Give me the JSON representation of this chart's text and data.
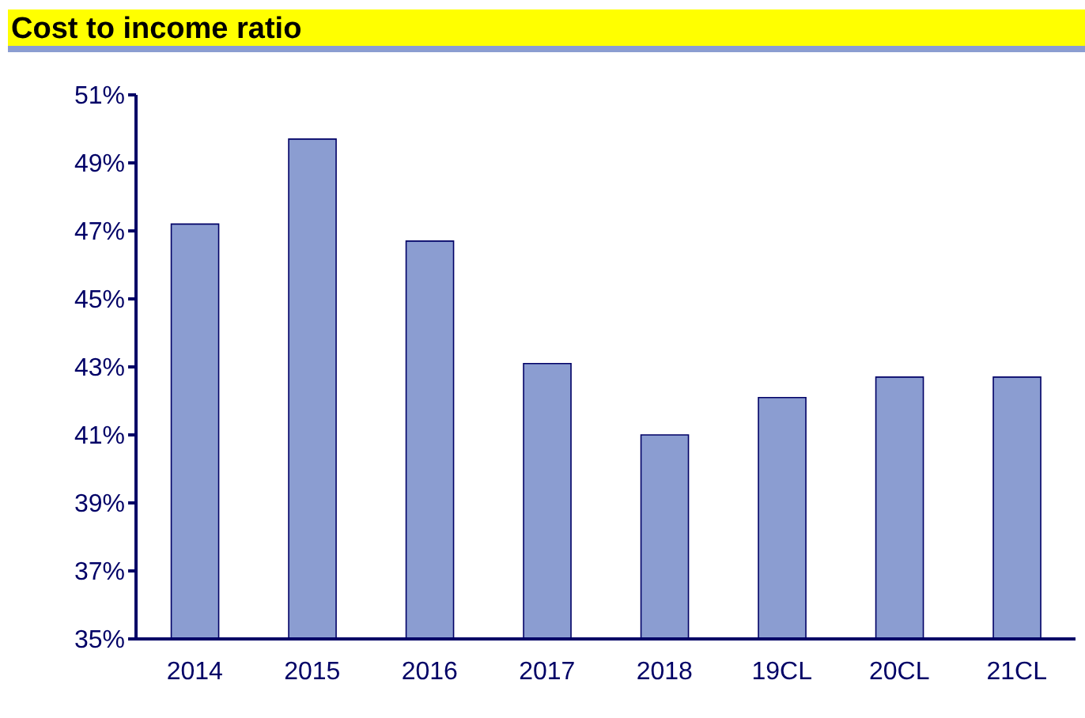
{
  "chart_data": {
    "type": "bar",
    "title": "Cost to income ratio",
    "categories": [
      "2014",
      "2015",
      "2016",
      "2017",
      "2018",
      "19CL",
      "20CL",
      "21CL"
    ],
    "values": [
      47.2,
      49.7,
      46.7,
      43.1,
      41.0,
      42.1,
      42.7,
      42.7
    ],
    "color": "#8b9dd1",
    "ylim": [
      35,
      51
    ],
    "yticks": [
      {
        "value": 35,
        "label": "35%"
      },
      {
        "value": 37,
        "label": "37%"
      },
      {
        "value": 39,
        "label": "39%"
      },
      {
        "value": 41,
        "label": "41%"
      },
      {
        "value": 43,
        "label": "43%"
      },
      {
        "value": 45,
        "label": "45%"
      },
      {
        "value": 47,
        "label": "47%"
      },
      {
        "value": 49,
        "label": "49%"
      },
      {
        "value": 51,
        "label": "51%"
      }
    ],
    "grid": false,
    "legend": false
  }
}
